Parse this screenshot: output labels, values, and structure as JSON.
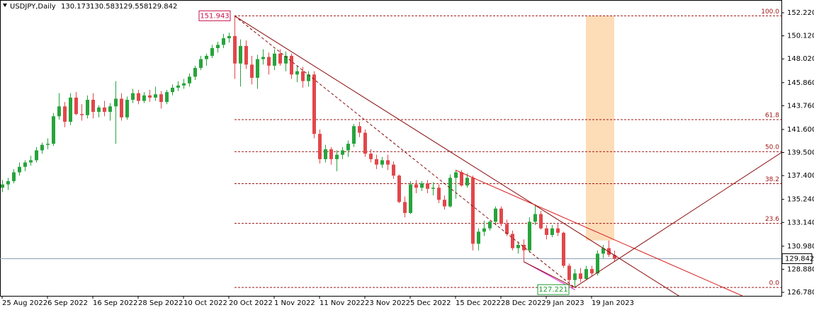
{
  "chart_data": {
    "type": "candlestick",
    "symbol": "USDJPY,Daily",
    "up_color": "#27a43c",
    "down_color": "#e2474b",
    "ylim": [
      126.46,
      153.38
    ],
    "yticks": [
      {
        "value": 152.22,
        "label": "152.220"
      },
      {
        "value": 150.12,
        "label": "150.120"
      },
      {
        "value": 148.02,
        "label": "148.020"
      },
      {
        "value": 145.86,
        "label": "145.860"
      },
      {
        "value": 143.76,
        "label": "143.760"
      },
      {
        "value": 141.6,
        "label": "141.600"
      },
      {
        "value": 139.5,
        "label": "139.500"
      },
      {
        "value": 137.4,
        "label": "137.400"
      },
      {
        "value": 135.24,
        "label": "135.240"
      },
      {
        "value": 133.14,
        "label": "133.140"
      },
      {
        "value": 130.98,
        "label": "130.980"
      },
      {
        "value": 128.88,
        "label": "128.880"
      },
      {
        "value": 126.78,
        "label": "126.780"
      }
    ],
    "xticks": [
      {
        "value": 0,
        "label": "25 Aug 2022"
      },
      {
        "value": 8,
        "label": "6 Sep 2022"
      },
      {
        "value": 16,
        "label": "16 Sep 2022"
      },
      {
        "value": 24,
        "label": "28 Sep 2022"
      },
      {
        "value": 32,
        "label": "10 Oct 2022"
      },
      {
        "value": 40,
        "label": "20 Oct 2022"
      },
      {
        "value": 48,
        "label": "1 Nov 2022"
      },
      {
        "value": 56,
        "label": "11 Nov 2022"
      },
      {
        "value": 64,
        "label": "23 Nov 2022"
      },
      {
        "value": 72,
        "label": "5 Dec 2022"
      },
      {
        "value": 80,
        "label": "15 Dec 2022"
      },
      {
        "value": 88,
        "label": "28 Dec 2022"
      },
      {
        "value": 96,
        "label": "9 Jan 2023"
      },
      {
        "value": 104,
        "label": "19 Jan 2023"
      }
    ],
    "ohlc": [
      [
        136.3,
        137.0,
        135.9,
        136.6
      ],
      [
        136.6,
        137.2,
        136.1,
        136.9
      ],
      [
        136.9,
        138.0,
        136.7,
        137.7
      ],
      [
        137.7,
        138.6,
        137.4,
        138.2
      ],
      [
        138.2,
        138.8,
        137.8,
        138.6
      ],
      [
        138.6,
        139.2,
        138.3,
        138.8
      ],
      [
        138.8,
        140.0,
        138.6,
        139.7
      ],
      [
        139.7,
        140.4,
        139.4,
        140.2
      ],
      [
        140.2,
        140.8,
        139.8,
        140.3
      ],
      [
        140.3,
        143.1,
        140.1,
        142.8
      ],
      [
        142.8,
        144.9,
        142.5,
        143.7
      ],
      [
        143.7,
        144.1,
        141.8,
        142.3
      ],
      [
        142.3,
        144.9,
        142.0,
        144.5
      ],
      [
        144.5,
        145.0,
        142.9,
        143.0
      ],
      [
        143.0,
        143.9,
        142.4,
        142.9
      ],
      [
        142.9,
        144.7,
        142.6,
        144.3
      ],
      [
        144.3,
        144.9,
        142.6,
        143.2
      ],
      [
        143.2,
        143.8,
        142.7,
        143.6
      ],
      [
        143.6,
        144.2,
        142.8,
        143.2
      ],
      [
        143.2,
        144.0,
        142.4,
        143.7
      ],
      [
        143.7,
        146.0,
        140.3,
        144.4
      ],
      [
        144.4,
        144.9,
        142.4,
        142.7
      ],
      [
        142.7,
        144.6,
        142.5,
        144.3
      ],
      [
        144.3,
        145.3,
        144.0,
        144.9
      ],
      [
        144.9,
        145.2,
        143.9,
        144.2
      ],
      [
        144.2,
        145.0,
        144.0,
        144.7
      ],
      [
        144.7,
        145.2,
        144.1,
        144.5
      ],
      [
        144.5,
        145.5,
        144.2,
        144.8
      ],
      [
        144.8,
        145.1,
        143.5,
        144.1
      ],
      [
        144.1,
        145.2,
        143.9,
        145.0
      ],
      [
        145.0,
        145.7,
        144.7,
        145.4
      ],
      [
        145.4,
        146.0,
        145.1,
        145.6
      ],
      [
        145.6,
        146.2,
        145.3,
        145.8
      ],
      [
        145.8,
        146.7,
        145.5,
        146.4
      ],
      [
        146.4,
        147.4,
        146.1,
        147.2
      ],
      [
        147.2,
        148.3,
        147.0,
        148.0
      ],
      [
        148.0,
        148.5,
        147.4,
        148.3
      ],
      [
        148.3,
        149.3,
        148.1,
        149.0
      ],
      [
        149.0,
        149.6,
        148.6,
        149.3
      ],
      [
        149.3,
        150.3,
        149.0,
        149.9
      ],
      [
        149.9,
        150.4,
        149.5,
        150.1
      ],
      [
        150.1,
        151.943,
        146.2,
        147.6
      ],
      [
        147.6,
        149.8,
        145.5,
        149.2
      ],
      [
        149.2,
        149.7,
        147.1,
        147.5
      ],
      [
        147.5,
        148.3,
        145.7,
        146.3
      ],
      [
        146.3,
        148.4,
        145.3,
        148.0
      ],
      [
        148.0,
        148.9,
        147.5,
        148.2
      ],
      [
        148.2,
        148.6,
        146.6,
        147.4
      ],
      [
        147.4,
        148.9,
        147.0,
        148.5
      ],
      [
        148.5,
        148.9,
        147.4,
        147.6
      ],
      [
        147.6,
        148.7,
        146.9,
        148.3
      ],
      [
        148.3,
        148.5,
        146.2,
        146.6
      ],
      [
        146.6,
        147.4,
        145.9,
        146.9
      ],
      [
        146.9,
        147.3,
        145.4,
        146.0
      ],
      [
        146.0,
        146.9,
        145.5,
        146.6
      ],
      [
        146.6,
        146.9,
        140.8,
        141.2
      ],
      [
        141.2,
        141.6,
        138.5,
        138.9
      ],
      [
        138.9,
        140.2,
        138.6,
        139.8
      ],
      [
        139.8,
        140.0,
        138.4,
        138.9
      ],
      [
        138.9,
        139.7,
        137.8,
        139.3
      ],
      [
        139.3,
        140.0,
        138.9,
        139.7
      ],
      [
        139.7,
        140.6,
        139.1,
        140.3
      ],
      [
        140.3,
        142.1,
        140.0,
        141.9
      ],
      [
        141.9,
        142.3,
        140.9,
        141.3
      ],
      [
        141.3,
        141.6,
        139.1,
        139.4
      ],
      [
        139.4,
        139.8,
        138.6,
        138.9
      ],
      [
        138.9,
        139.3,
        138.0,
        138.4
      ],
      [
        138.4,
        139.1,
        138.1,
        138.8
      ],
      [
        138.8,
        139.3,
        137.9,
        138.4
      ],
      [
        138.4,
        138.7,
        137.1,
        137.4
      ],
      [
        137.4,
        137.5,
        134.9,
        135.0
      ],
      [
        135.0,
        135.5,
        133.6,
        134.0
      ],
      [
        134.0,
        136.9,
        133.9,
        136.6
      ],
      [
        136.6,
        137.0,
        135.8,
        136.3
      ],
      [
        136.3,
        136.9,
        136.0,
        136.7
      ],
      [
        136.7,
        137.0,
        135.8,
        136.2
      ],
      [
        136.2,
        136.8,
        135.6,
        136.3
      ],
      [
        136.3,
        136.6,
        134.9,
        135.2
      ],
      [
        135.2,
        135.6,
        134.3,
        134.6
      ],
      [
        134.6,
        137.5,
        134.5,
        137.2
      ],
      [
        137.2,
        137.9,
        135.3,
        137.7
      ],
      [
        137.7,
        137.9,
        136.4,
        136.5
      ],
      [
        136.5,
        137.6,
        136.3,
        137.2
      ],
      [
        137.2,
        137.4,
        130.6,
        131.2
      ],
      [
        131.2,
        132.6,
        130.6,
        132.3
      ],
      [
        132.3,
        133.3,
        131.9,
        132.6
      ],
      [
        132.6,
        133.3,
        132.4,
        133.2
      ],
      [
        133.2,
        134.6,
        132.9,
        134.4
      ],
      [
        134.4,
        134.6,
        132.8,
        133.0
      ],
      [
        133.0,
        133.4,
        131.9,
        132.1
      ],
      [
        132.1,
        132.4,
        130.6,
        130.8
      ],
      [
        130.8,
        131.4,
        130.3,
        131.1
      ],
      [
        131.1,
        131.6,
        129.5,
        130.6
      ],
      [
        130.6,
        133.6,
        130.4,
        133.2
      ],
      [
        133.2,
        134.8,
        132.9,
        133.9
      ],
      [
        133.9,
        134.2,
        132.5,
        132.6
      ],
      [
        132.6,
        132.9,
        131.6,
        132.0
      ],
      [
        132.0,
        132.9,
        131.8,
        132.6
      ],
      [
        132.6,
        133.0,
        131.9,
        132.2
      ],
      [
        132.2,
        132.3,
        129.0,
        129.2
      ],
      [
        129.2,
        129.4,
        127.5,
        127.9
      ],
      [
        127.9,
        128.9,
        127.221,
        128.5
      ],
      [
        128.5,
        129.0,
        127.7,
        128.0
      ],
      [
        128.0,
        129.2,
        127.9,
        128.9
      ],
      [
        128.9,
        129.2,
        128.2,
        128.5
      ],
      [
        128.5,
        130.6,
        128.3,
        130.3
      ],
      [
        130.3,
        131.1,
        129.9,
        130.8
      ],
      [
        130.8,
        131.5,
        130.0,
        130.2
      ],
      [
        130.173,
        130.583,
        129.558,
        129.842
      ]
    ],
    "fib_levels": [
      {
        "level": {
          "value": 100,
          "label": "100.0"
        },
        "price": 151.943
      },
      {
        "level": {
          "value": 61.8,
          "label": "61.8"
        },
        "price": 142.499
      },
      {
        "level": {
          "value": 50,
          "label": "50.0"
        },
        "price": 139.582
      },
      {
        "level": {
          "value": 38.2,
          "label": "38.2"
        },
        "price": 136.665
      },
      {
        "level": {
          "value": 23.6,
          "label": "23.6"
        },
        "price": 133.055
      },
      {
        "level": {
          "value": 0,
          "label": "0.0"
        },
        "price": 127.221
      }
    ],
    "fib_start": 41,
    "fib_color": "#a01818",
    "zone": {
      "x": [
        103,
        108
      ],
      "y": [
        131.5,
        151.943
      ],
      "color": "#fddcb8"
    },
    "lines": [
      {
        "x": [
          41,
          120.9
        ],
        "y": [
          151.943,
          125.97
        ],
        "color": "#8b1010",
        "dash": false
      },
      {
        "x": [
          41,
          101
        ],
        "y": [
          151.943,
          127.221
        ],
        "color": "#8b1010",
        "dash": true
      },
      {
        "x": [
          80,
          130.6
        ],
        "y": [
          137.9,
          126.46
        ],
        "color": "#d81a1a",
        "dash": false
      },
      {
        "x": [
          92.1,
          101.1
        ],
        "y": [
          129.55,
          127.0
        ],
        "color": "#e020e0",
        "dash": false
      },
      {
        "x": [
          92.1,
          101
        ],
        "y": [
          129.55,
          127.221
        ],
        "color": "#8b1010",
        "dash": false
      },
      {
        "x": [
          101,
          137.5
        ],
        "y": [
          127.221,
          139.5
        ],
        "color": "#8b1010",
        "dash": false
      }
    ],
    "price_line_color": "#8ca0b8",
    "high_index": 41,
    "low_index": 101
  }
}
